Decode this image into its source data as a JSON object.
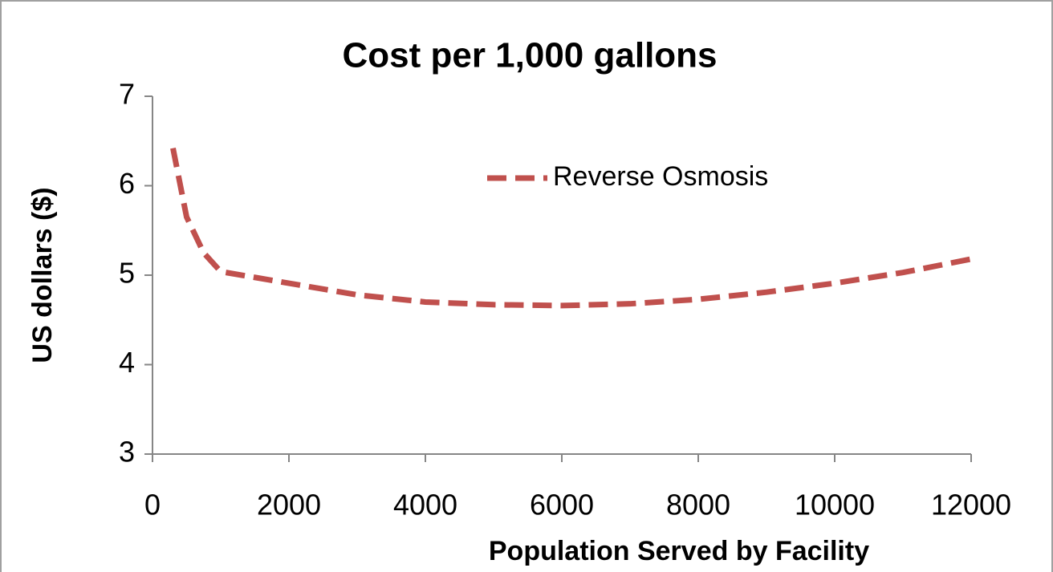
{
  "chart_data": {
    "type": "line",
    "title": "Cost per 1,000 gallons",
    "x_label": "Population Served by Facility",
    "y_label": "US dollars ($)",
    "x": [
      300,
      500,
      750,
      1000,
      2000,
      3000,
      4000,
      5000,
      6000,
      7000,
      8000,
      9000,
      10000,
      11000,
      12000
    ],
    "series": [
      {
        "name": "Reverse Osmosis",
        "color": "#c0504d",
        "values": [
          6.42,
          5.65,
          5.25,
          5.04,
          4.91,
          4.78,
          4.7,
          4.67,
          4.66,
          4.68,
          4.73,
          4.81,
          4.91,
          5.03,
          5.18
        ]
      }
    ],
    "xlim": [
      0,
      12000
    ],
    "xticks": [
      0,
      2000,
      4000,
      6000,
      8000,
      10000,
      12000
    ],
    "ylim": [
      3,
      7
    ],
    "yticks": [
      3,
      4,
      5,
      6,
      7
    ],
    "grid": false,
    "legend": "upper-right",
    "line_style": "dashed"
  }
}
